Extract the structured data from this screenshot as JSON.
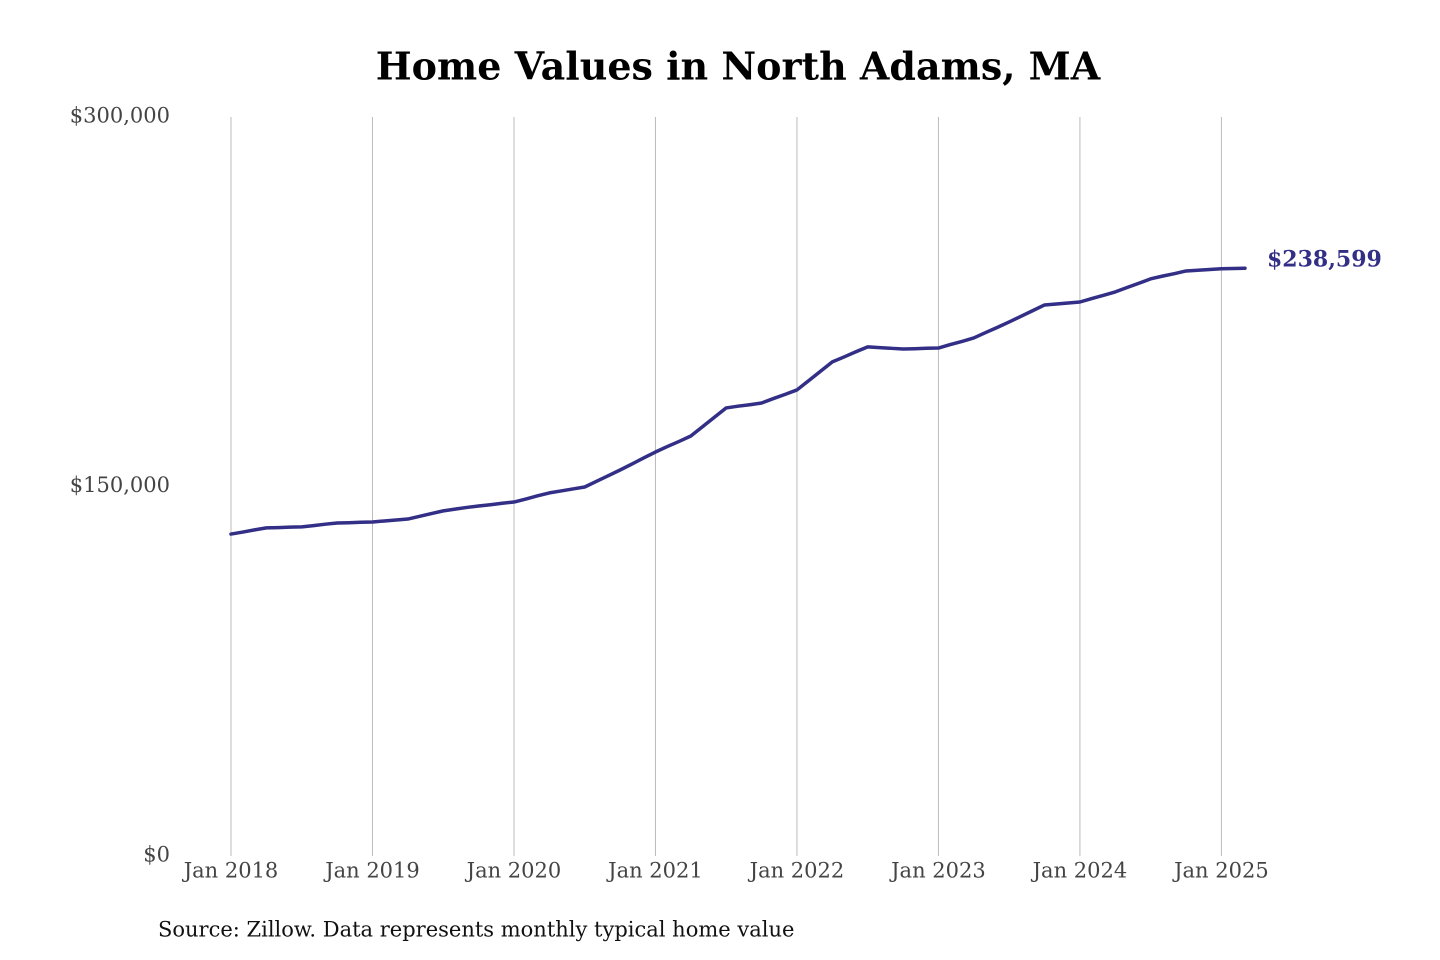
{
  "chart_data": {
    "type": "line",
    "title": "Home Values in North Adams, MA",
    "source": "Source: Zillow. Data represents monthly typical home value",
    "x": [
      "2018-01",
      "2018-02",
      "2018-03",
      "2018-04",
      "2018-05",
      "2018-06",
      "2018-07",
      "2018-08",
      "2018-09",
      "2018-10",
      "2018-11",
      "2018-12",
      "2019-01",
      "2019-02",
      "2019-03",
      "2019-04",
      "2019-05",
      "2019-06",
      "2019-07",
      "2019-08",
      "2019-09",
      "2019-10",
      "2019-11",
      "2019-12",
      "2020-01",
      "2020-02",
      "2020-03",
      "2020-04",
      "2020-05",
      "2020-06",
      "2020-07",
      "2020-08",
      "2020-09",
      "2020-10",
      "2020-11",
      "2020-12",
      "2021-01",
      "2021-02",
      "2021-03",
      "2021-04",
      "2021-05",
      "2021-06",
      "2021-07",
      "2021-08",
      "2021-09",
      "2021-10",
      "2021-11",
      "2021-12",
      "2022-01",
      "2022-02",
      "2022-03",
      "2022-04",
      "2022-05",
      "2022-06",
      "2022-07",
      "2022-08",
      "2022-09",
      "2022-10",
      "2022-11",
      "2022-12",
      "2023-01",
      "2023-02",
      "2023-03",
      "2023-04",
      "2023-05",
      "2023-06",
      "2023-07",
      "2023-08",
      "2023-09",
      "2023-10",
      "2023-11",
      "2023-12",
      "2024-01",
      "2024-02",
      "2024-03",
      "2024-04",
      "2024-05",
      "2024-06",
      "2024-07",
      "2024-08",
      "2024-09",
      "2024-10",
      "2024-11",
      "2024-12",
      "2025-01",
      "2025-02",
      "2025-03"
    ],
    "series": [
      {
        "name": "North Adams, MA",
        "color": "#332f86",
        "values": [
          130700,
          131500,
          132400,
          133200,
          133300,
          133500,
          133600,
          134100,
          134700,
          135200,
          135300,
          135500,
          135600,
          136000,
          136400,
          136800,
          137900,
          139000,
          140100,
          140800,
          141500,
          142100,
          142600,
          143200,
          143700,
          144900,
          146200,
          147400,
          148200,
          149000,
          149800,
          152100,
          154400,
          156700,
          159100,
          161600,
          164000,
          166200,
          168300,
          170500,
          174300,
          178100,
          181900,
          182600,
          183200,
          183900,
          185700,
          187400,
          189200,
          193000,
          196800,
          200600,
          202600,
          204700,
          206700,
          206400,
          206100,
          205800,
          205900,
          206100,
          206200,
          207600,
          208900,
          210300,
          212500,
          214600,
          216800,
          219100,
          221400,
          223700,
          224100,
          224500,
          224900,
          226300,
          227600,
          229000,
          230800,
          232500,
          234300,
          235400,
          236400,
          237500,
          237800,
          238100,
          238400,
          238500,
          238599
        ],
        "value_labels": [
          null,
          null,
          null,
          null,
          null,
          null,
          null,
          null,
          null,
          null,
          null,
          null,
          null,
          null,
          null,
          null,
          null,
          null,
          null,
          null,
          null,
          null,
          null,
          null,
          null,
          null,
          null,
          null,
          null,
          null,
          null,
          null,
          null,
          null,
          null,
          null,
          null,
          null,
          null,
          null,
          null,
          null,
          null,
          null,
          null,
          null,
          null,
          null,
          null,
          null,
          null,
          null,
          null,
          null,
          null,
          null,
          null,
          null,
          null,
          null,
          null,
          null,
          null,
          null,
          null,
          null,
          null,
          null,
          null,
          null,
          null,
          null,
          null,
          null,
          null,
          null,
          null,
          null,
          null,
          null,
          null,
          null,
          null,
          null,
          null,
          null,
          "$238,599"
        ]
      }
    ],
    "xlim": [
      "2018-01",
      "2025-03"
    ],
    "xticks": [
      {
        "value": "2018-01",
        "label": "Jan 2018"
      },
      {
        "value": "2019-01",
        "label": "Jan 2019"
      },
      {
        "value": "2020-01",
        "label": "Jan 2020"
      },
      {
        "value": "2021-01",
        "label": "Jan 2021"
      },
      {
        "value": "2022-01",
        "label": "Jan 2022"
      },
      {
        "value": "2023-01",
        "label": "Jan 2023"
      },
      {
        "value": "2024-01",
        "label": "Jan 2024"
      },
      {
        "value": "2025-01",
        "label": "Jan 2025"
      }
    ],
    "ylim": [
      0,
      300000
    ],
    "yticks": [
      {
        "value": 0,
        "label": "$0"
      },
      {
        "value": 150000,
        "label": "$150,000"
      },
      {
        "value": 300000,
        "label": "$300,000"
      }
    ],
    "grid": "x"
  }
}
